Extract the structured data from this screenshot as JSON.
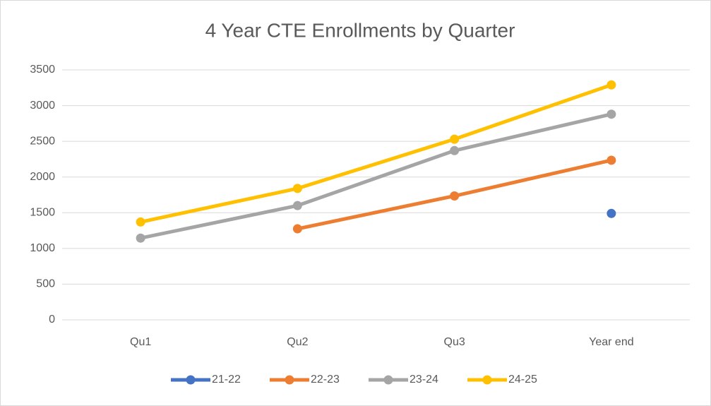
{
  "chart_data": {
    "type": "line",
    "title": "4 Year CTE Enrollments by Quarter",
    "categories": [
      "Qu1",
      "Qu2",
      "Qu3",
      "Year end"
    ],
    "series": [
      {
        "name": "21-22",
        "color": "#4472c4",
        "values": [
          null,
          null,
          null,
          1490
        ]
      },
      {
        "name": "22-23",
        "color": "#ed7d31",
        "values": [
          null,
          1275,
          1735,
          2235
        ]
      },
      {
        "name": "23-24",
        "color": "#a5a5a5",
        "values": [
          1145,
          1600,
          2370,
          2880
        ]
      },
      {
        "name": "24-25",
        "color": "#ffc000",
        "values": [
          1370,
          1840,
          2530,
          3290
        ]
      }
    ],
    "ylim": [
      0,
      3500
    ],
    "yticks": [
      0,
      500,
      1000,
      1500,
      2000,
      2500,
      3000,
      3500
    ],
    "grid": true,
    "legend": "bottom"
  }
}
